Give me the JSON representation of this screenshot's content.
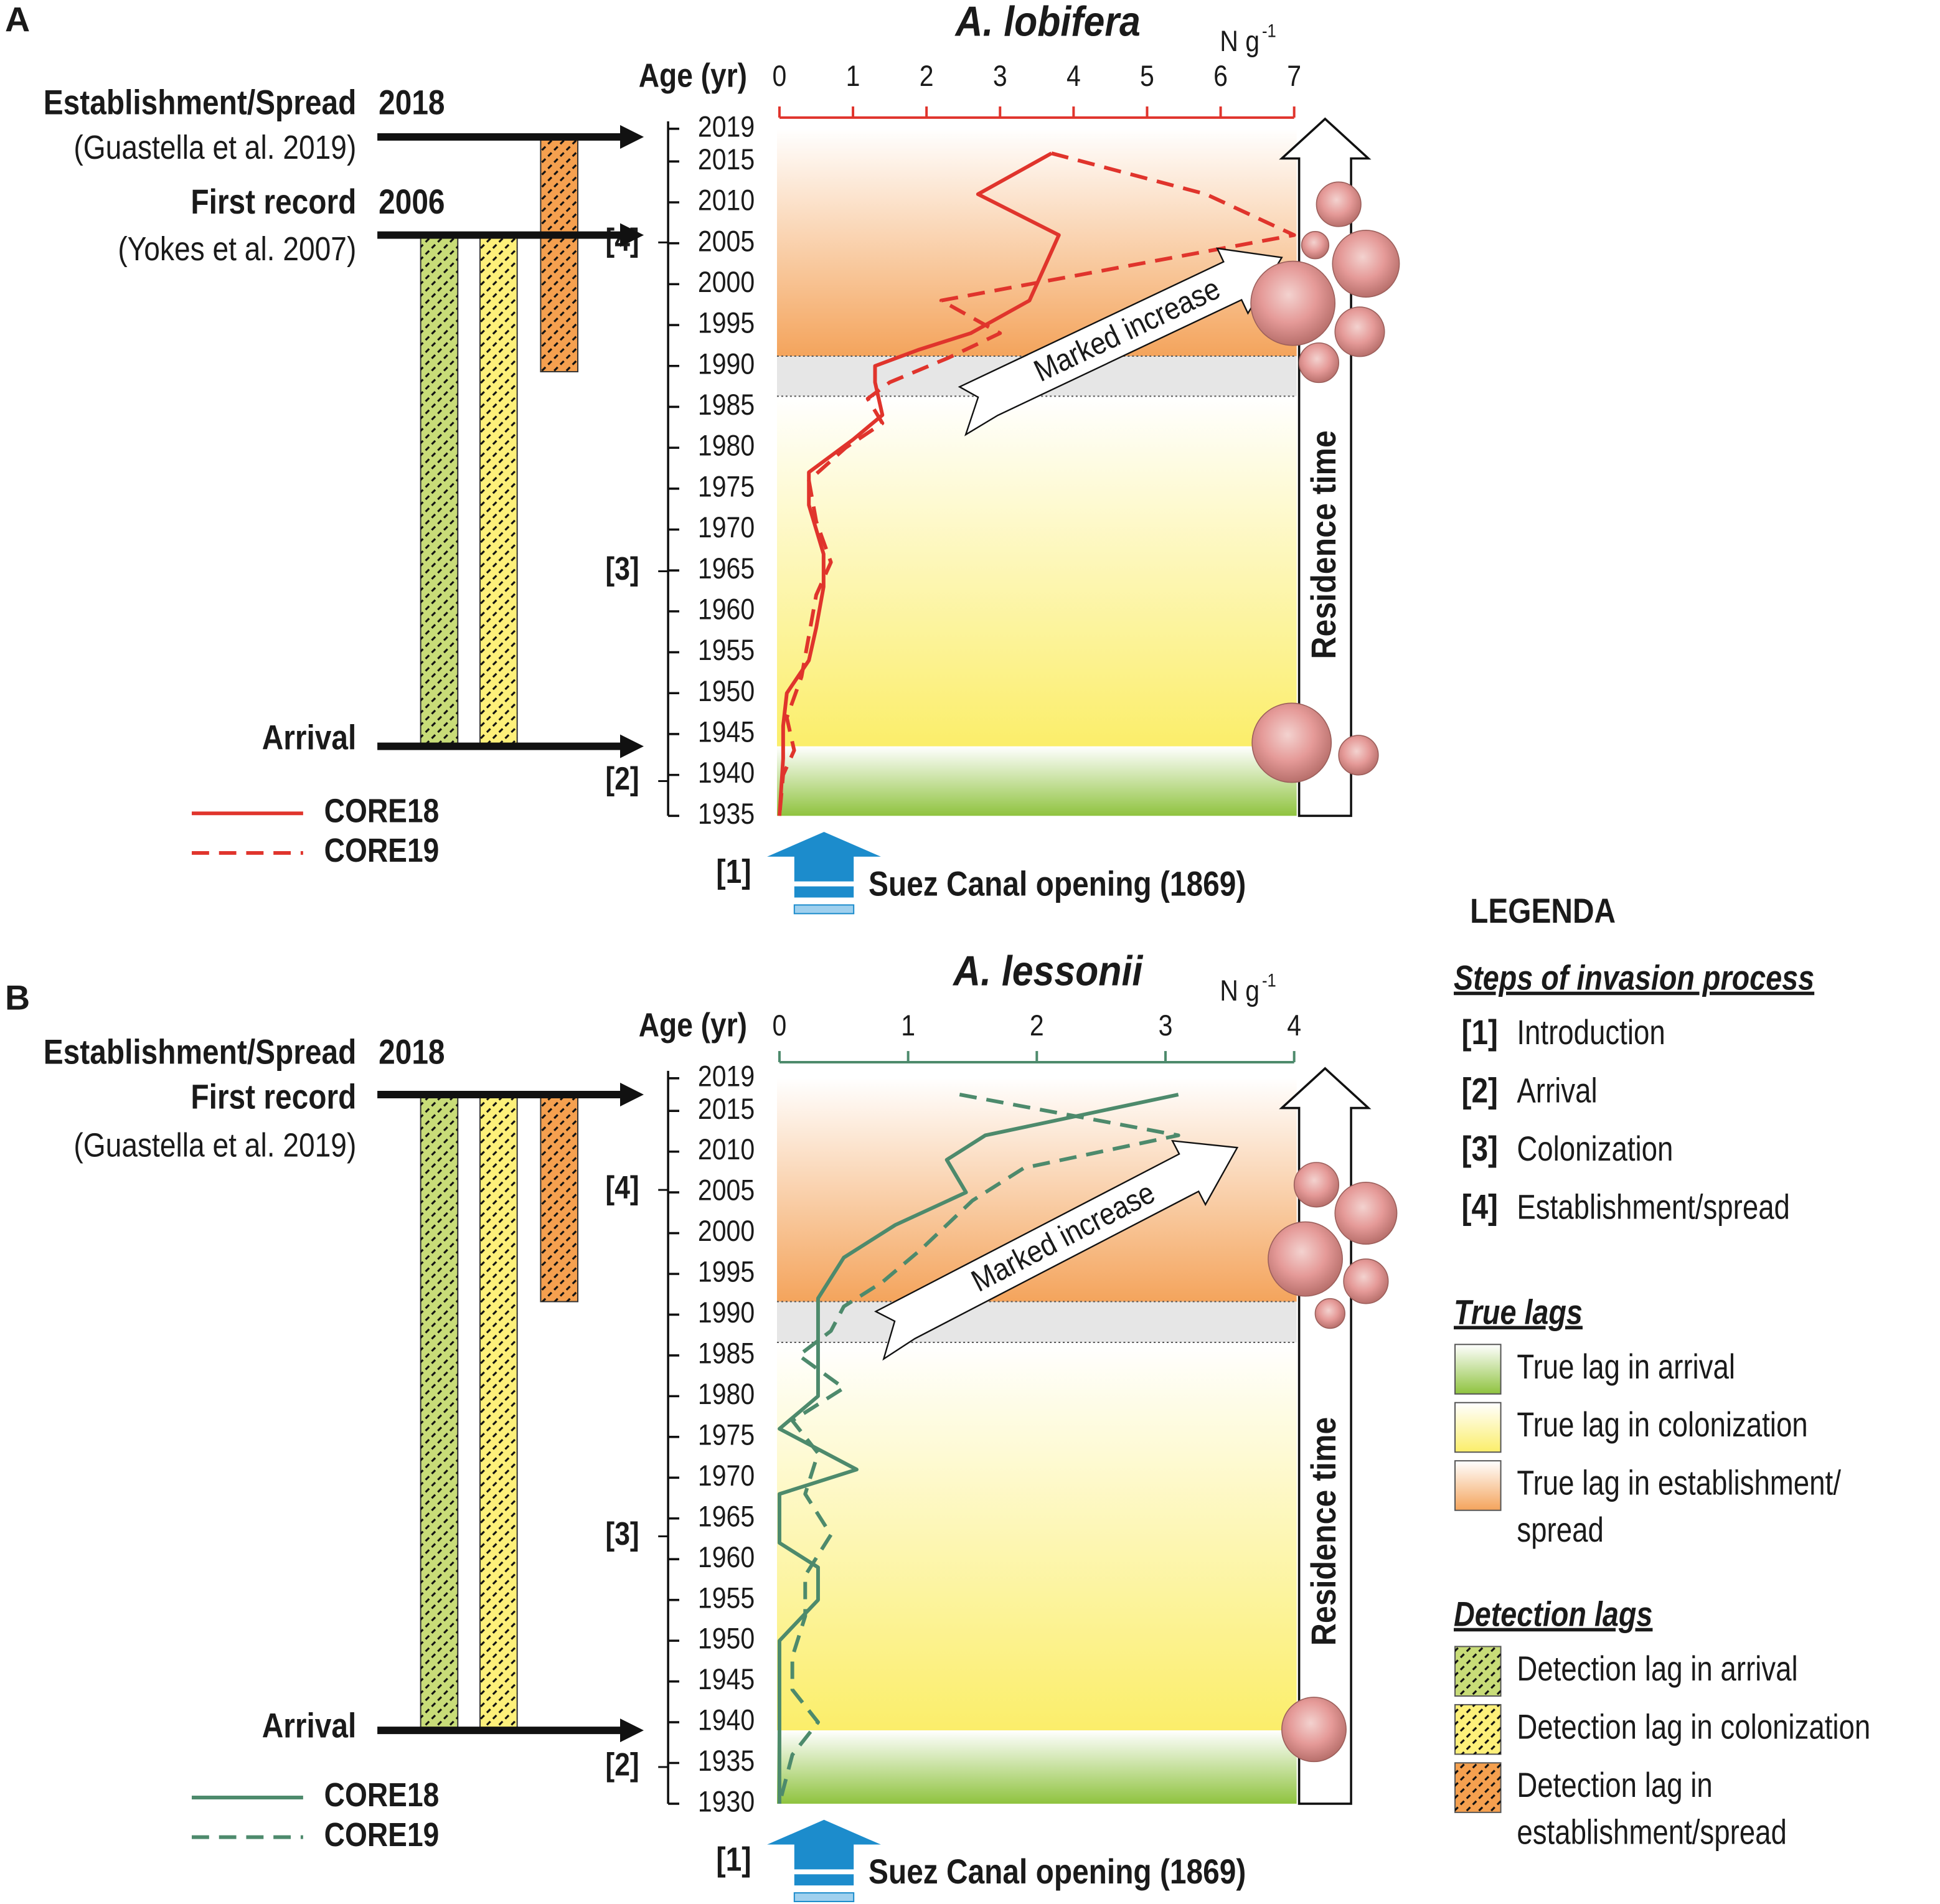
{
  "chart_data": [
    {
      "type": "line",
      "panel_label": "A",
      "title": "A. lobifera",
      "x_label": "N g",
      "x_label_sup": "-1",
      "y_label": "Age (yr)",
      "xlim": [
        0,
        7
      ],
      "xticks": [
        0,
        1,
        2,
        3,
        4,
        5,
        6,
        7
      ],
      "ylim": [
        1935,
        2019
      ],
      "yticks": [
        2019,
        2015,
        2010,
        2005,
        2000,
        1995,
        1990,
        1985,
        1980,
        1975,
        1970,
        1965,
        1960,
        1955,
        1950,
        1945,
        1940,
        1935
      ],
      "series": [
        {
          "name": "CORE18",
          "color": "#e0342c",
          "dash": "solid",
          "y": [
            2016,
            2011,
            2006,
            2002,
            1998,
            1994,
            1992,
            1990,
            1988,
            1984,
            1981,
            1977,
            1973,
            1970,
            1967,
            1963,
            1958,
            1954,
            1950,
            1946,
            1942,
            1935
          ],
          "values": [
            3.7,
            2.7,
            3.8,
            3.6,
            3.4,
            2.6,
            1.9,
            1.3,
            1.3,
            1.4,
            1.0,
            0.4,
            0.4,
            0.5,
            0.6,
            0.6,
            0.5,
            0.4,
            0.1,
            0.05,
            0.05,
            0
          ]
        },
        {
          "name": "CORE19",
          "color": "#e0342c",
          "dash": "dashed",
          "y": [
            2016,
            2011,
            2006,
            1998,
            1994,
            1991,
            1988,
            1986,
            1983,
            1980,
            1976,
            1971,
            1966,
            1962,
            1957,
            1952,
            1947,
            1943,
            1940,
            1935
          ],
          "values": [
            3.7,
            5.8,
            7.0,
            2.2,
            3.0,
            2.3,
            1.5,
            1.2,
            1.4,
            0.9,
            0.4,
            0.5,
            0.7,
            0.5,
            0.4,
            0.3,
            0.1,
            0.2,
            0.05,
            0
          ]
        }
      ],
      "stages": [
        {
          "label": "[2]",
          "from": 1935,
          "to": 1943.5,
          "color": "#8fc33f"
        },
        {
          "label": "[3]",
          "from": 1943.5,
          "to": 1986.3,
          "color": "#fbee6a"
        },
        {
          "label": "[4]",
          "from": 1991.2,
          "to": 2019,
          "color": "#f4a45c"
        }
      ],
      "gray_band": [
        1986.3,
        1991.2
      ],
      "arrow_label": "Marked increase",
      "residence_label": "Residence time",
      "introduction": {
        "key": "[1]",
        "text": "Suez Canal opening (1869)"
      },
      "events": [
        {
          "label": "Establishment/Spread",
          "year": 2018,
          "source": "(Guastella et al. 2019)"
        },
        {
          "label": "First record",
          "year": 2006,
          "source": "(Yokes et al. 2007)"
        },
        {
          "label": "Arrival",
          "age": 1943.5
        }
      ],
      "lag_bars": [
        {
          "from": 1943.5,
          "to": 2006,
          "color": "#c8dc78"
        },
        {
          "from": 1943.5,
          "to": 2006,
          "color": "#fdf07a"
        },
        {
          "from": 1989.3,
          "to": 2018,
          "color": "#f5a04f"
        }
      ]
    },
    {
      "type": "line",
      "panel_label": "B",
      "title": "A. lessonii",
      "x_label": "N g",
      "x_label_sup": "-1",
      "y_label": "Age (yr)",
      "xlim": [
        0,
        4
      ],
      "xticks": [
        0,
        1,
        2,
        3,
        4
      ],
      "ylim": [
        1930,
        2019
      ],
      "yticks": [
        2019,
        2015,
        2010,
        2005,
        2000,
        1995,
        1990,
        1985,
        1980,
        1975,
        1970,
        1965,
        1960,
        1955,
        1950,
        1945,
        1940,
        1935,
        1930
      ],
      "series": [
        {
          "name": "CORE18",
          "color": "#4d8a6c",
          "dash": "solid",
          "y": [
            2017,
            2012,
            2009,
            2005,
            2001,
            1997,
            1992,
            1988,
            1984,
            1980,
            1976,
            1971,
            1968,
            1962,
            1959,
            1955,
            1950,
            1945,
            1940,
            1930
          ],
          "values": [
            3.1,
            1.6,
            1.3,
            1.45,
            0.9,
            0.5,
            0.3,
            0.3,
            0.3,
            0.3,
            0,
            0.6,
            0,
            0,
            0.3,
            0.3,
            0,
            0,
            0,
            0
          ]
        },
        {
          "name": "CORE19",
          "color": "#4d8a6c",
          "dash": "dashed",
          "y": [
            2017,
            2012,
            2008,
            2004,
            1998,
            1994,
            1991,
            1988,
            1985,
            1981,
            1977,
            1973,
            1968,
            1963,
            1958,
            1953,
            1948,
            1944,
            1940,
            1936,
            1930
          ],
          "values": [
            1.4,
            3.1,
            1.9,
            1.5,
            1.1,
            0.8,
            0.5,
            0.4,
            0.15,
            0.5,
            0.1,
            0.3,
            0.2,
            0.4,
            0.2,
            0.2,
            0.1,
            0.1,
            0.3,
            0.1,
            0
          ]
        }
      ],
      "stages": [
        {
          "label": "[2]",
          "from": 1930,
          "to": 1939,
          "color": "#8fc33f"
        },
        {
          "label": "[3]",
          "from": 1939,
          "to": 1986.6,
          "color": "#fbee6a"
        },
        {
          "label": "[4]",
          "from": 1991.6,
          "to": 2019,
          "color": "#f4a45c"
        }
      ],
      "gray_band": [
        1986.6,
        1991.6
      ],
      "arrow_label": "Marked increase",
      "residence_label": "Residence time",
      "introduction": {
        "key": "[1]",
        "text": "Suez Canal opening (1869)"
      },
      "events": [
        {
          "label": "Establishment/Spread",
          "year": 2018
        },
        {
          "label": "First record",
          "age": 2017,
          "source": "(Guastella et al. 2019)"
        },
        {
          "label": "Arrival",
          "age": 1939
        }
      ],
      "lag_bars": [
        {
          "from": 1939,
          "to": 2017,
          "color": "#c8dc78"
        },
        {
          "from": 1939,
          "to": 2017,
          "color": "#fdf07a"
        },
        {
          "from": 1991.6,
          "to": 2017,
          "color": "#f5a04f"
        }
      ]
    }
  ],
  "legend": {
    "title": "LEGENDA",
    "sections": [
      {
        "heading": "Steps of invasion process",
        "items": [
          {
            "key": "[1]",
            "text": [
              "Introduction"
            ]
          },
          {
            "key": "[2]",
            "text": [
              "Arrival"
            ]
          },
          {
            "key": "[3]",
            "text": [
              "Colonization"
            ]
          },
          {
            "key": "[4]",
            "text": [
              "Establishment/spread"
            ]
          }
        ]
      },
      {
        "heading": "True lags",
        "items": [
          {
            "color": "#8fc33f",
            "hatched": false,
            "text": [
              "True lag in arrival"
            ]
          },
          {
            "color": "#fbee6a",
            "hatched": false,
            "text": [
              "True lag in colonization"
            ]
          },
          {
            "color": "#f4a45c",
            "hatched": false,
            "text": [
              "True lag in establishment/",
              "spread"
            ]
          }
        ]
      },
      {
        "heading": "Detection lags",
        "items": [
          {
            "color": "#c8dc78",
            "hatched": true,
            "text": [
              "Detection lag in arrival"
            ]
          },
          {
            "color": "#fdf07a",
            "hatched": true,
            "text": [
              "Detection lag in colonization"
            ]
          },
          {
            "color": "#f5a04f",
            "hatched": true,
            "text": [
              "Detection lag in",
              "establishment/spread"
            ]
          }
        ]
      }
    ]
  }
}
